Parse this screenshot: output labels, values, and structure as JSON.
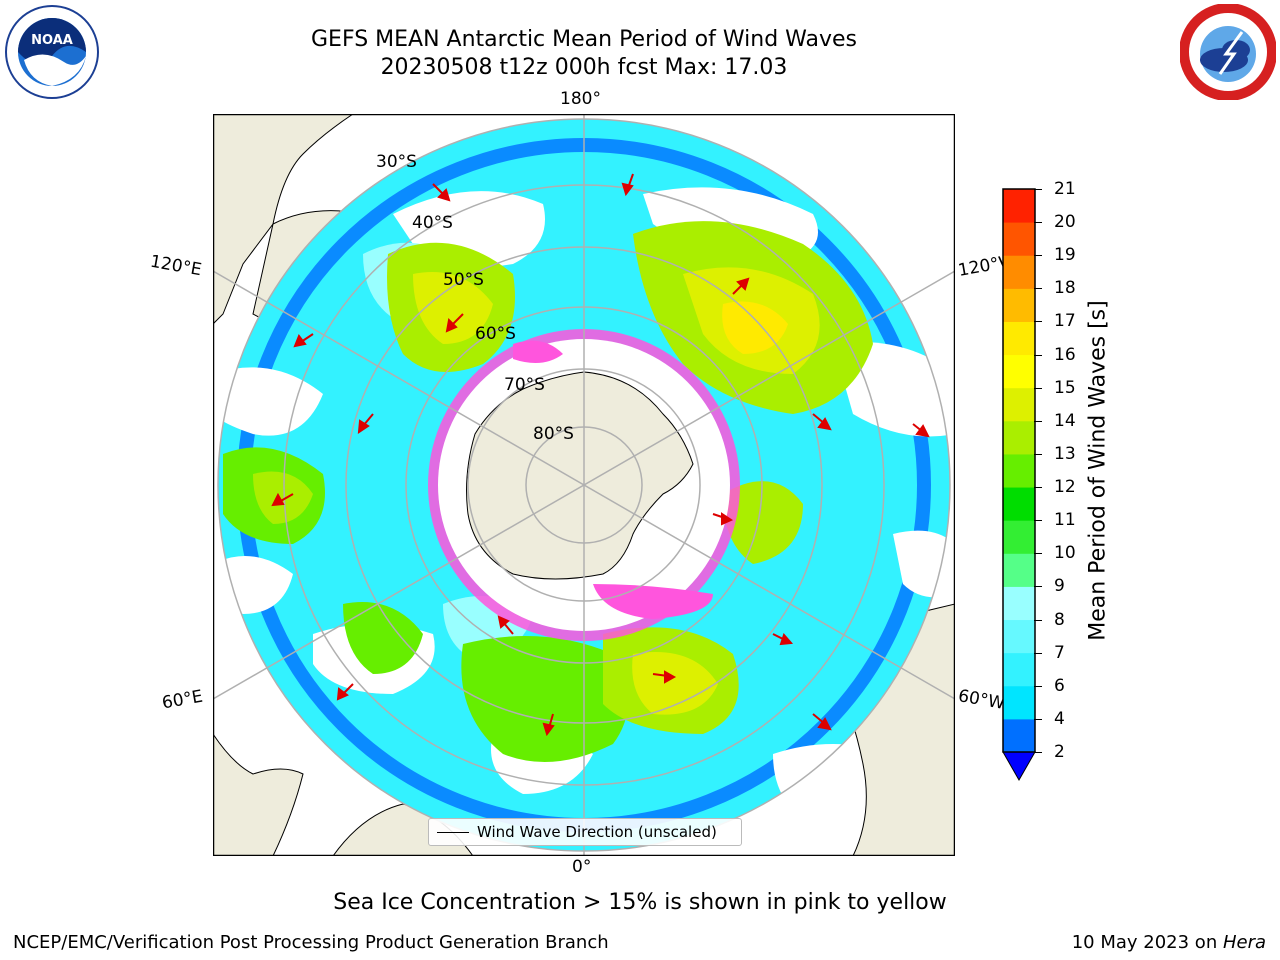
{
  "title": {
    "line1": "GEFS MEAN Antarctic Mean Period of Wind Waves",
    "line2": "20230508 t12z 000h fcst   Max: 17.03"
  },
  "logos": {
    "left": "NOAA",
    "right": "NATIONAL WEATHER SERVICE"
  },
  "map": {
    "projection": "south-polar-stereographic",
    "longitude_labels": {
      "top": "180°",
      "bottom": "0°",
      "left_upper": "120°E",
      "left_lower": "60°E",
      "right_upper": "120°W",
      "right_lower": "60°W"
    },
    "latitude_labels": [
      "30°S",
      "40°S",
      "50°S",
      "60°S",
      "70°S",
      "80°S"
    ],
    "ocean_color": "#ffffff",
    "land_color": "#eeecdc"
  },
  "legend": {
    "label": "Wind Wave Direction (unscaled)"
  },
  "colorbar": {
    "label": "Mean Period of Wind Waves [s]",
    "ticks": [
      "2",
      "4",
      "6",
      "7",
      "8",
      "9",
      "10",
      "11",
      "12",
      "13",
      "14",
      "15",
      "16",
      "17",
      "18",
      "19",
      "20",
      "21"
    ],
    "colors": [
      "#0070ff",
      "#00e5ff",
      "#33f2ff",
      "#66f9ff",
      "#99ffff",
      "#55ff88",
      "#33ee33",
      "#00dd00",
      "#66ee00",
      "#aaee00",
      "#ddf000",
      "#ffff00",
      "#ffea00",
      "#ffbb00",
      "#ff8c00",
      "#ff5500",
      "#ff2200"
    ],
    "extend_color": "#0000ff"
  },
  "sea_ice_note": "Sea Ice Concentration > 15% is shown in pink to yellow",
  "footer": {
    "left": "NCEP/EMC/Verification Post Processing Product Generation Branch",
    "right_prefix": "10 May 2023 on ",
    "right_host": "Hera"
  }
}
